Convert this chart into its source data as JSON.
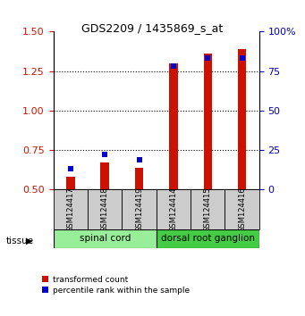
{
  "title": "GDS2209 / 1435869_s_at",
  "samples": [
    "GSM124417",
    "GSM124418",
    "GSM124419",
    "GSM124414",
    "GSM124415",
    "GSM124416"
  ],
  "transformed_count": [
    0.58,
    0.67,
    0.64,
    1.3,
    1.36,
    1.39
  ],
  "percentile_rank_pct": [
    13,
    22,
    19,
    78,
    83,
    83
  ],
  "tissue_groups": [
    {
      "label": "spinal cord",
      "samples": [
        0,
        1,
        2
      ],
      "color": "#99ee99"
    },
    {
      "label": "dorsal root ganglion",
      "samples": [
        3,
        4,
        5
      ],
      "color": "#44cc44"
    }
  ],
  "ylim": [
    0.5,
    1.5
  ],
  "yticks_left": [
    0.5,
    0.75,
    1.0,
    1.25,
    1.5
  ],
  "yticks_right": [
    0,
    25,
    50,
    75,
    100
  ],
  "bar_color": "#cc1100",
  "blue_color": "#0000cc",
  "bar_width": 0.25,
  "left_tick_color": "#cc1100",
  "right_tick_color": "#0000cc",
  "sample_box_color": "#cccccc",
  "legend_red": "transformed count",
  "legend_blue": "percentile rank within the sample",
  "bg_color": "#ffffff"
}
